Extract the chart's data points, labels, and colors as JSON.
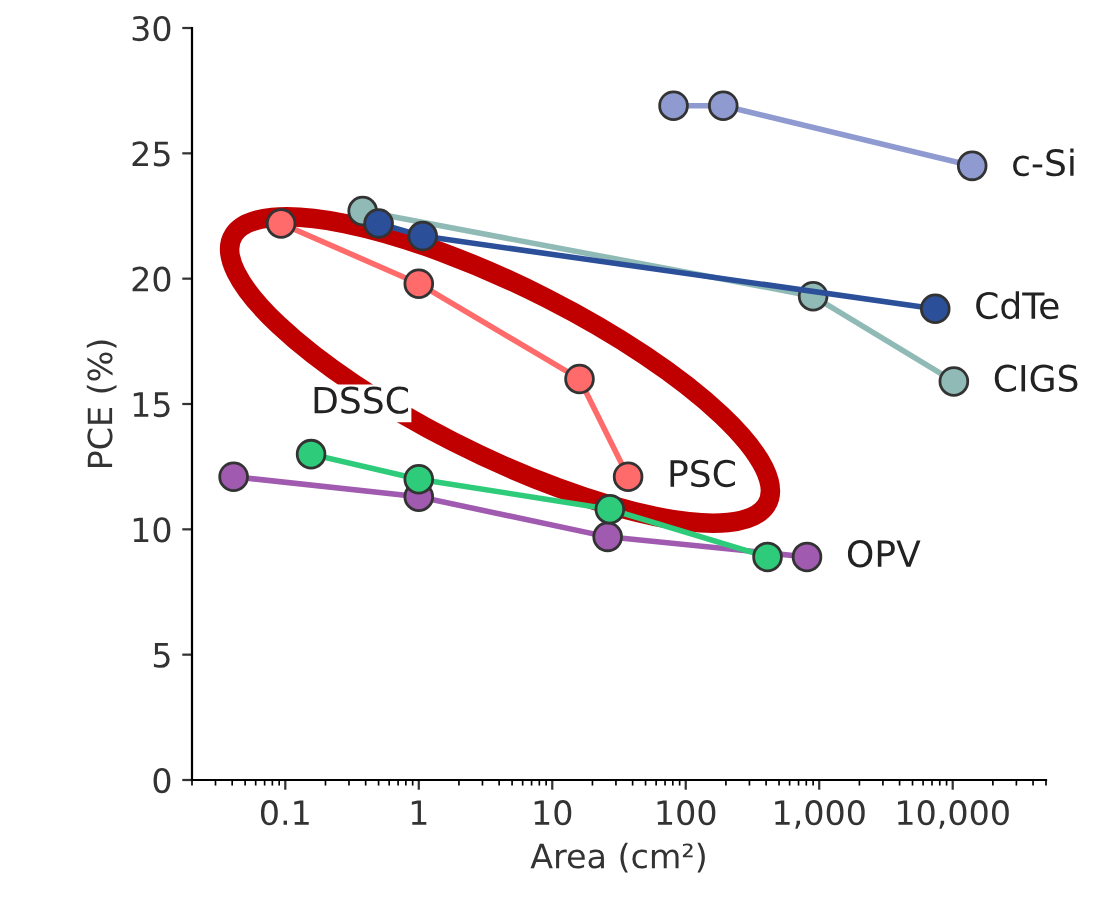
{
  "chart_data": {
    "type": "line",
    "xlabel": "Area (cm²)",
    "ylabel": "PCE (%)",
    "log": "x",
    "marker": "circle",
    "line_style": "solid",
    "grid": false,
    "legend": false,
    "xlim": [
      0.02,
      50000
    ],
    "xticks": [
      0.1,
      1,
      10,
      100,
      {
        "value": 1000,
        "label": "1,000"
      },
      {
        "value": 10000,
        "label": "10,000"
      }
    ],
    "ylim": [
      0,
      30
    ],
    "yticks": [
      0,
      5,
      10,
      15,
      20,
      25,
      30
    ],
    "series": [
      {
        "color": "#8f9bd0",
        "x": [
          81,
          191,
          14000
        ],
        "values": [
          26.9,
          26.9,
          24.5
        ]
      },
      {
        "color": "#2c4f9a",
        "x": [
          0.5,
          1.07,
          7400
        ],
        "values": [
          22.2,
          21.7,
          18.8
        ]
      },
      {
        "color": "#8fbab5",
        "x": [
          0.38,
          900,
          10200
        ],
        "values": [
          22.7,
          19.3,
          15.9
        ]
      },
      {
        "color": "#ff6b6b",
        "x": [
          0.093,
          1.0,
          16,
          37
        ],
        "values": [
          22.2,
          19.8,
          16.0,
          12.1
        ]
      },
      {
        "color": "#2ecc7a",
        "x": [
          0.156,
          1.0,
          27,
          410
        ],
        "values": [
          13.0,
          12.0,
          10.8,
          8.9
        ]
      },
      {
        "color": "#a05ab0",
        "x": [
          0.041,
          1.0,
          26,
          810
        ],
        "values": [
          12.1,
          11.3,
          9.7,
          8.9
        ]
      }
    ],
    "annotations": [
      {
        "text": "c-Si",
        "x": 14000,
        "y": 24.5
      },
      {
        "text": "CdTe",
        "x": 7400,
        "y": 18.8
      },
      {
        "text": "CIGS",
        "x": 10200,
        "y": 15.9
      },
      {
        "text": "PSC",
        "x": 37,
        "y": 12.1
      },
      {
        "text": "DSSC",
        "x": 0.156,
        "y": 13.0
      },
      {
        "text": "OPV",
        "x": 810,
        "y": 8.9
      }
    ]
  }
}
